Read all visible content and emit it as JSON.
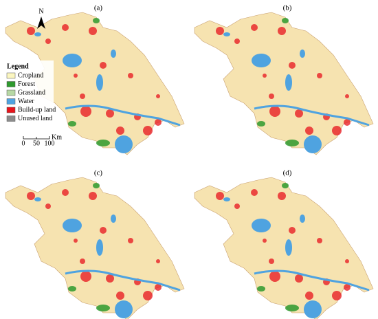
{
  "panels": [
    {
      "label": "(a)"
    },
    {
      "label": "(b)"
    },
    {
      "label": "(c)"
    },
    {
      "label": "(d)"
    }
  ],
  "legend": {
    "title": "Legend",
    "items": [
      {
        "label": "Cropland",
        "color": "#fbf6c0"
      },
      {
        "label": "Forest",
        "color": "#2e9a2e"
      },
      {
        "label": "Grassland",
        "color": "#b7d8a4"
      },
      {
        "label": "Water",
        "color": "#4fa3e0"
      },
      {
        "label": "Build-up land",
        "color": "#e8141c"
      },
      {
        "label": "Unused land",
        "color": "#8c8c8c"
      }
    ]
  },
  "scale_bar": {
    "ticks": [
      "0",
      "50",
      "100"
    ],
    "unit": "Km"
  },
  "north_arrow": "N"
}
